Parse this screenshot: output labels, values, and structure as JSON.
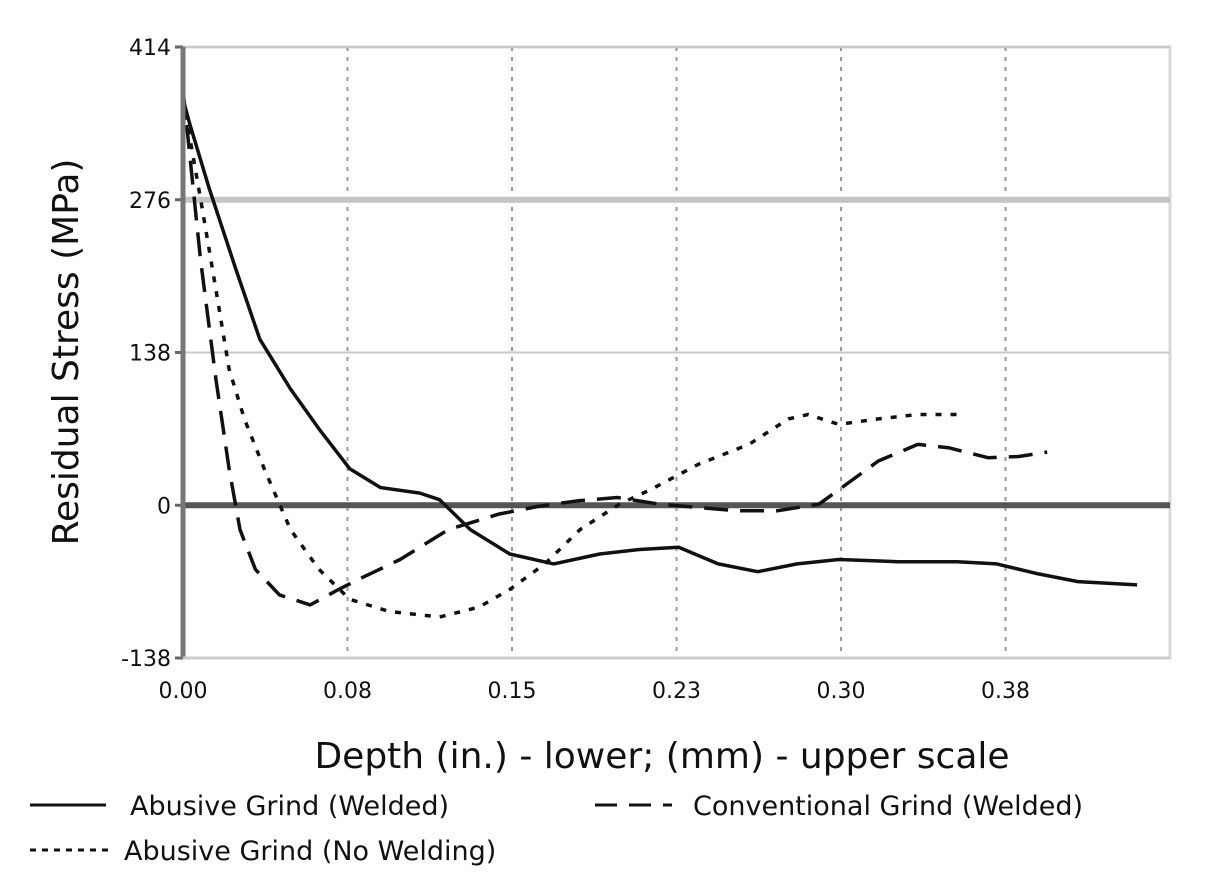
{
  "chart_data": {
    "type": "line",
    "title": "",
    "xlabel": "Depth (in.) - lower; (mm) - upper scale",
    "ylabel": "Residual Stress (MPa)",
    "xlim": [
      0,
      0.45
    ],
    "ylim": [
      -138,
      414
    ],
    "x_ticks": [
      {
        "label": "0.00",
        "value": 0
      },
      {
        "label": "0.08",
        "value": 0.075
      },
      {
        "label": "0.15",
        "value": 0.15
      },
      {
        "label": "0.23",
        "value": 0.225
      },
      {
        "label": "0.30",
        "value": 0.3
      },
      {
        "label": "0.38",
        "value": 0.375
      }
    ],
    "y_ticks": [
      {
        "label": "414",
        "value": 414
      },
      {
        "label": "276",
        "value": 276
      },
      {
        "label": "138",
        "value": 138
      },
      {
        "label": "0",
        "value": 0
      },
      {
        "label": "-138",
        "value": -138
      }
    ],
    "grid": true,
    "legend_position": "bottom",
    "series": [
      {
        "name": "Abusive Grind (Welded)",
        "style": "solid",
        "x": [
          0,
          0.003,
          0.012,
          0.024,
          0.035,
          0.049,
          0.062,
          0.076,
          0.09,
          0.108,
          0.117,
          0.131,
          0.149,
          0.169,
          0.19,
          0.208,
          0.226,
          0.244,
          0.262,
          0.28,
          0.299,
          0.326,
          0.353,
          0.371,
          0.39,
          0.408,
          0.435
        ],
        "y": [
          367,
          345,
          286,
          214,
          150,
          105,
          69,
          33,
          16,
          11,
          5,
          -22,
          -44,
          -53,
          -44,
          -40,
          -38,
          -53,
          -60,
          -53,
          -49,
          -51,
          -51,
          -53,
          -62,
          -69,
          -72
        ]
      },
      {
        "name": "Conventional Grind (Welded)",
        "style": "dashed",
        "x": [
          0,
          0.008,
          0.015,
          0.021,
          0.026,
          0.033,
          0.044,
          0.058,
          0.071,
          0.08,
          0.099,
          0.121,
          0.144,
          0.162,
          0.18,
          0.198,
          0.217,
          0.235,
          0.253,
          0.271,
          0.29,
          0.299,
          0.317,
          0.335,
          0.349,
          0.367,
          0.381,
          0.394
        ],
        "y": [
          376,
          222,
          114,
          33,
          -22,
          -58,
          -81,
          -90,
          -76,
          -67,
          -49,
          -22,
          -8,
          -1,
          4,
          7,
          1,
          -2,
          -5,
          -5,
          1,
          14,
          40,
          55,
          52,
          43,
          44,
          48
        ]
      },
      {
        "name": "Abusive Grind (No Welding)",
        "style": "dotted",
        "x": [
          0,
          0.008,
          0.015,
          0.021,
          0.028,
          0.037,
          0.049,
          0.062,
          0.076,
          0.094,
          0.117,
          0.135,
          0.149,
          0.165,
          0.181,
          0.199,
          0.213,
          0.235,
          0.258,
          0.276,
          0.285,
          0.299,
          0.317,
          0.335,
          0.353
        ],
        "y": [
          367,
          277,
          195,
          123,
          78,
          33,
          -22,
          -58,
          -85,
          -96,
          -101,
          -92,
          -76,
          -53,
          -22,
          1,
          14,
          37,
          55,
          78,
          82,
          73,
          78,
          82,
          82
        ]
      }
    ]
  }
}
